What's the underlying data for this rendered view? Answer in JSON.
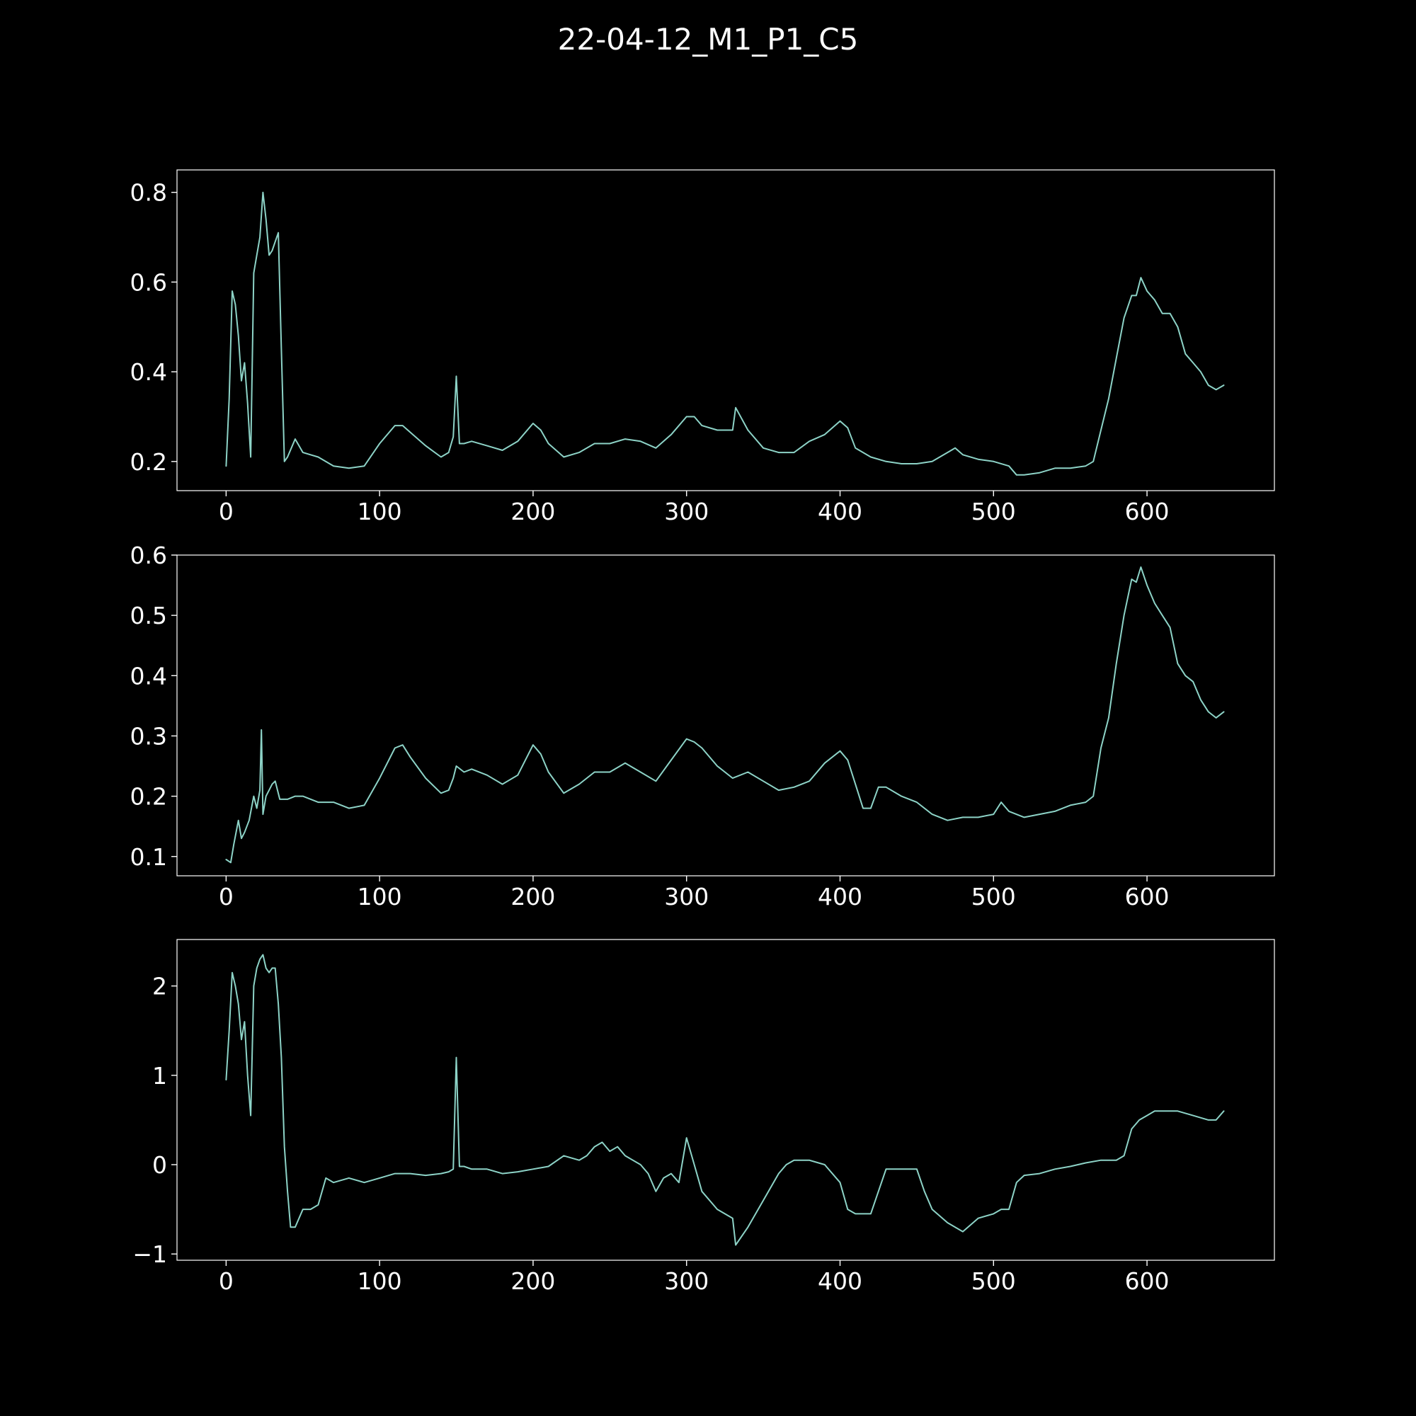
{
  "figure": {
    "title": "22-04-12_M1_P1_C5",
    "background": "#000000",
    "foreground": "#ffffff",
    "line_color": "#8dd3c7"
  },
  "chart_data": [
    {
      "type": "line",
      "title": "",
      "xlabel": "",
      "ylabel": "",
      "xlim": [
        -32,
        683
      ],
      "ylim": [
        0.135,
        0.85
      ],
      "xticks": [
        0,
        100,
        200,
        300,
        400,
        500,
        600
      ],
      "xtick_labels": [
        "0",
        "100",
        "200",
        "300",
        "400",
        "500",
        "600"
      ],
      "yticks": [
        0.2,
        0.4,
        0.6,
        0.8
      ],
      "ytick_labels": [
        "0.2",
        "0.4",
        "0.6",
        "0.8"
      ],
      "grid": false,
      "series": [
        {
          "x": [
            0,
            2,
            4,
            6,
            8,
            10,
            12,
            14,
            16,
            18,
            20,
            22,
            24,
            26,
            28,
            30,
            32,
            34,
            36,
            38,
            40,
            45,
            50,
            55,
            60,
            70,
            80,
            90,
            100,
            110,
            115,
            120,
            130,
            140,
            145,
            148,
            150,
            152,
            155,
            160,
            170,
            180,
            190,
            200,
            205,
            210,
            220,
            230,
            240,
            250,
            260,
            270,
            280,
            290,
            300,
            305,
            310,
            320,
            330,
            332,
            340,
            350,
            360,
            370,
            380,
            390,
            400,
            405,
            410,
            420,
            430,
            440,
            450,
            460,
            470,
            475,
            480,
            490,
            500,
            510,
            515,
            520,
            530,
            540,
            550,
            560,
            565,
            570,
            575,
            580,
            585,
            590,
            593,
            596,
            600,
            605,
            610,
            615,
            620,
            625,
            630,
            635,
            640,
            645,
            650
          ],
          "y": [
            0.19,
            0.34,
            0.58,
            0.55,
            0.48,
            0.38,
            0.42,
            0.33,
            0.21,
            0.62,
            0.66,
            0.7,
            0.8,
            0.74,
            0.66,
            0.67,
            0.69,
            0.71,
            0.45,
            0.2,
            0.21,
            0.25,
            0.22,
            0.215,
            0.21,
            0.19,
            0.185,
            0.19,
            0.24,
            0.28,
            0.28,
            0.265,
            0.235,
            0.21,
            0.22,
            0.255,
            0.39,
            0.24,
            0.24,
            0.245,
            0.235,
            0.225,
            0.245,
            0.285,
            0.27,
            0.24,
            0.21,
            0.22,
            0.24,
            0.24,
            0.25,
            0.245,
            0.23,
            0.26,
            0.3,
            0.3,
            0.28,
            0.27,
            0.27,
            0.32,
            0.27,
            0.23,
            0.22,
            0.22,
            0.245,
            0.26,
            0.29,
            0.275,
            0.23,
            0.21,
            0.2,
            0.195,
            0.195,
            0.2,
            0.22,
            0.23,
            0.215,
            0.205,
            0.2,
            0.19,
            0.17,
            0.17,
            0.175,
            0.185,
            0.185,
            0.19,
            0.2,
            0.27,
            0.34,
            0.43,
            0.52,
            0.57,
            0.57,
            0.61,
            0.58,
            0.56,
            0.53,
            0.53,
            0.5,
            0.44,
            0.42,
            0.4,
            0.37,
            0.36,
            0.37
          ]
        }
      ]
    },
    {
      "type": "line",
      "title": "",
      "xlabel": "",
      "ylabel": "",
      "xlim": [
        -32,
        683
      ],
      "ylim": [
        0.068,
        0.6
      ],
      "xticks": [
        0,
        100,
        200,
        300,
        400,
        500,
        600
      ],
      "xtick_labels": [
        "0",
        "100",
        "200",
        "300",
        "400",
        "500",
        "600"
      ],
      "yticks": [
        0.1,
        0.2,
        0.3,
        0.4,
        0.5,
        0.6
      ],
      "ytick_labels": [
        "0.1",
        "0.2",
        "0.3",
        "0.4",
        "0.5",
        "0.6"
      ],
      "grid": false,
      "series": [
        {
          "x": [
            0,
            3,
            5,
            8,
            10,
            12,
            15,
            18,
            20,
            22,
            23,
            24,
            26,
            28,
            30,
            32,
            35,
            40,
            45,
            50,
            60,
            70,
            80,
            90,
            100,
            110,
            115,
            120,
            130,
            140,
            145,
            148,
            150,
            155,
            160,
            170,
            180,
            190,
            200,
            205,
            210,
            220,
            230,
            240,
            250,
            260,
            270,
            280,
            290,
            300,
            305,
            310,
            320,
            330,
            340,
            350,
            360,
            370,
            380,
            390,
            400,
            405,
            410,
            415,
            420,
            425,
            430,
            440,
            450,
            460,
            470,
            480,
            490,
            500,
            505,
            510,
            520,
            530,
            540,
            550,
            560,
            565,
            570,
            575,
            580,
            585,
            590,
            593,
            596,
            600,
            605,
            610,
            615,
            620,
            625,
            630,
            635,
            640,
            645,
            650
          ],
          "y": [
            0.095,
            0.09,
            0.12,
            0.16,
            0.13,
            0.14,
            0.16,
            0.2,
            0.18,
            0.21,
            0.31,
            0.17,
            0.2,
            0.21,
            0.22,
            0.225,
            0.195,
            0.195,
            0.2,
            0.2,
            0.19,
            0.19,
            0.18,
            0.185,
            0.23,
            0.28,
            0.285,
            0.265,
            0.23,
            0.205,
            0.21,
            0.23,
            0.25,
            0.24,
            0.245,
            0.235,
            0.22,
            0.235,
            0.285,
            0.27,
            0.24,
            0.205,
            0.22,
            0.24,
            0.24,
            0.255,
            0.24,
            0.225,
            0.26,
            0.295,
            0.29,
            0.28,
            0.25,
            0.23,
            0.24,
            0.225,
            0.21,
            0.215,
            0.225,
            0.255,
            0.275,
            0.26,
            0.22,
            0.18,
            0.18,
            0.215,
            0.215,
            0.2,
            0.19,
            0.17,
            0.16,
            0.165,
            0.165,
            0.17,
            0.19,
            0.175,
            0.165,
            0.17,
            0.175,
            0.185,
            0.19,
            0.2,
            0.28,
            0.33,
            0.42,
            0.5,
            0.56,
            0.555,
            0.58,
            0.55,
            0.52,
            0.5,
            0.48,
            0.42,
            0.4,
            0.39,
            0.36,
            0.34,
            0.33,
            0.34
          ]
        }
      ]
    },
    {
      "type": "line",
      "title": "",
      "xlabel": "",
      "ylabel": "",
      "xlim": [
        -32,
        683
      ],
      "ylim": [
        -1.07,
        2.52
      ],
      "xticks": [
        0,
        100,
        200,
        300,
        400,
        500,
        600
      ],
      "xtick_labels": [
        "0",
        "100",
        "200",
        "300",
        "400",
        "500",
        "600"
      ],
      "yticks": [
        -1,
        0,
        1,
        2
      ],
      "ytick_labels": [
        "−1",
        "0",
        "1",
        "2"
      ],
      "grid": false,
      "series": [
        {
          "x": [
            0,
            2,
            4,
            6,
            8,
            10,
            12,
            14,
            16,
            18,
            20,
            22,
            24,
            26,
            28,
            30,
            32,
            34,
            36,
            38,
            40,
            42,
            45,
            50,
            55,
            60,
            65,
            70,
            80,
            90,
            100,
            110,
            120,
            130,
            140,
            145,
            148,
            150,
            152,
            155,
            160,
            170,
            180,
            190,
            200,
            210,
            220,
            230,
            235,
            240,
            245,
            250,
            255,
            260,
            270,
            275,
            280,
            285,
            290,
            295,
            298,
            300,
            305,
            310,
            320,
            330,
            332,
            340,
            350,
            360,
            365,
            370,
            380,
            390,
            400,
            405,
            410,
            420,
            425,
            430,
            440,
            450,
            455,
            460,
            470,
            480,
            490,
            500,
            505,
            510,
            515,
            520,
            530,
            540,
            550,
            560,
            570,
            580,
            585,
            590,
            595,
            600,
            605,
            610,
            620,
            630,
            640,
            645,
            650
          ],
          "y": [
            0.95,
            1.5,
            2.15,
            2.0,
            1.8,
            1.4,
            1.6,
            1.0,
            0.55,
            2.0,
            2.2,
            2.3,
            2.35,
            2.2,
            2.15,
            2.2,
            2.2,
            1.8,
            1.2,
            0.2,
            -0.3,
            -0.7,
            -0.7,
            -0.5,
            -0.5,
            -0.45,
            -0.15,
            -0.2,
            -0.15,
            -0.2,
            -0.15,
            -0.1,
            -0.1,
            -0.12,
            -0.1,
            -0.08,
            -0.05,
            1.2,
            -0.02,
            -0.02,
            -0.05,
            -0.05,
            -0.1,
            -0.08,
            -0.05,
            -0.02,
            0.1,
            0.05,
            0.1,
            0.2,
            0.25,
            0.15,
            0.2,
            0.1,
            0.0,
            -0.1,
            -0.3,
            -0.15,
            -0.1,
            -0.2,
            0.1,
            0.3,
            0.0,
            -0.3,
            -0.5,
            -0.6,
            -0.9,
            -0.7,
            -0.4,
            -0.1,
            0.0,
            0.05,
            0.05,
            0.0,
            -0.2,
            -0.5,
            -0.55,
            -0.55,
            -0.3,
            -0.05,
            -0.05,
            -0.05,
            -0.3,
            -0.5,
            -0.65,
            -0.75,
            -0.6,
            -0.55,
            -0.5,
            -0.5,
            -0.2,
            -0.12,
            -0.1,
            -0.05,
            -0.02,
            0.02,
            0.05,
            0.05,
            0.1,
            0.4,
            0.5,
            0.55,
            0.6,
            0.6,
            0.6,
            0.55,
            0.5,
            0.5,
            0.6
          ]
        }
      ]
    }
  ]
}
